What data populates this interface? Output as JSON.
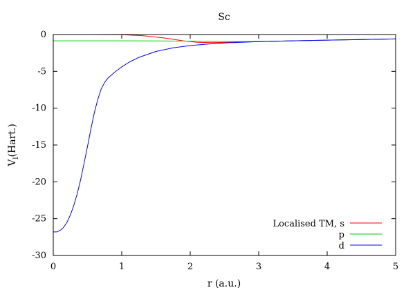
{
  "chart_data": {
    "type": "line",
    "title": "Sc",
    "xlabel": "r (a.u.)",
    "ylabel": "V",
    "ylabel_subscript": "l",
    "ylabel_unit": "(Hart.)",
    "xlim": [
      0,
      5
    ],
    "ylim": [
      -30,
      0
    ],
    "xticks": [
      0,
      1,
      2,
      3,
      4,
      5
    ],
    "yticks": [
      0,
      -5,
      -10,
      -15,
      -20,
      -25,
      -30
    ],
    "grid": false,
    "legend_position": "bottom-right",
    "series": [
      {
        "name": "Localised TM, s",
        "color": "#ff0000",
        "x": [
          0.0,
          0.5,
          1.0,
          1.3,
          1.6,
          1.9,
          2.1,
          2.3,
          2.6,
          3.0,
          3.5,
          4.0,
          4.5,
          5.0
        ],
        "y": [
          0.0,
          0.0,
          -0.03,
          -0.15,
          -0.45,
          -0.85,
          -1.05,
          -1.1,
          -1.05,
          -0.97,
          -0.85,
          -0.76,
          -0.68,
          -0.6
        ]
      },
      {
        "name": "p",
        "color": "#00cc00",
        "x": [
          0.0,
          0.5,
          1.0,
          1.5,
          2.0,
          2.5,
          3.0,
          3.5,
          4.0,
          4.5,
          5.0
        ],
        "y": [
          -0.85,
          -0.85,
          -0.85,
          -0.87,
          -0.9,
          -0.95,
          -0.95,
          -0.85,
          -0.76,
          -0.68,
          -0.6
        ]
      },
      {
        "name": "d",
        "color": "#0000ff",
        "x": [
          0.0,
          0.05,
          0.1,
          0.15,
          0.2,
          0.25,
          0.3,
          0.35,
          0.4,
          0.45,
          0.5,
          0.55,
          0.6,
          0.65,
          0.7,
          0.75,
          0.8,
          0.9,
          1.0,
          1.1,
          1.25,
          1.5,
          1.75,
          2.0,
          2.25,
          2.5,
          3.0,
          3.5,
          4.0,
          4.5,
          5.0
        ],
        "y": [
          -26.8,
          -26.8,
          -26.6,
          -26.2,
          -25.5,
          -24.5,
          -23.2,
          -21.6,
          -19.7,
          -17.5,
          -15.2,
          -12.8,
          -10.6,
          -8.8,
          -7.4,
          -6.5,
          -5.9,
          -5.1,
          -4.4,
          -3.8,
          -3.1,
          -2.3,
          -1.8,
          -1.5,
          -1.3,
          -1.15,
          -0.97,
          -0.85,
          -0.76,
          -0.68,
          -0.6
        ]
      }
    ]
  }
}
